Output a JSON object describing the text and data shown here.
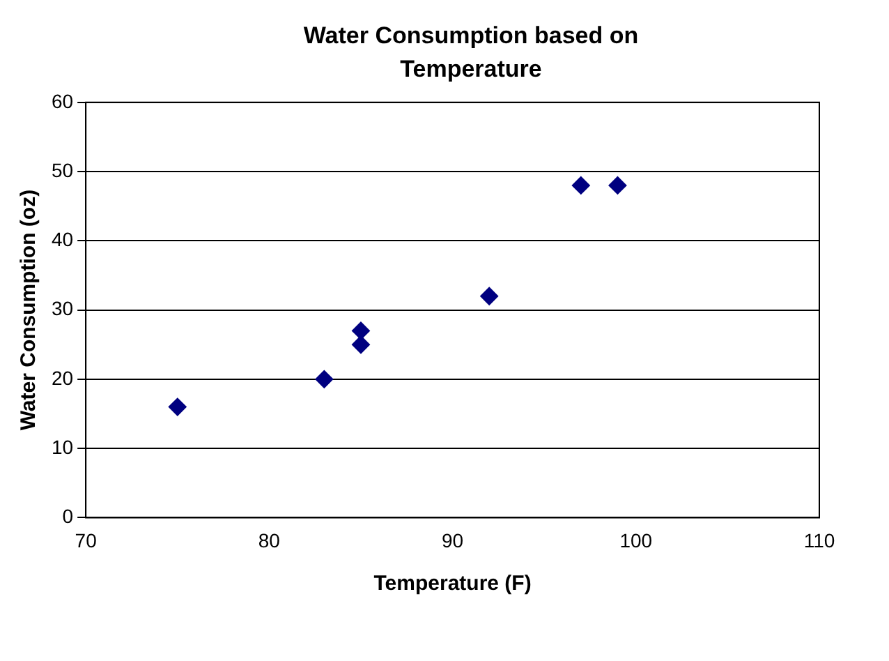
{
  "chart_data": {
    "type": "scatter",
    "title": "Water Consumption based on Temperature",
    "xlabel": "Temperature (F)",
    "ylabel": "Water Consumption (oz)",
    "x": [
      75,
      83,
      85,
      85,
      92,
      97,
      99
    ],
    "series": [
      {
        "color": "#000080",
        "values": [
          16,
          20,
          27,
          25,
          32,
          48,
          48
        ]
      }
    ],
    "xlim": [
      70,
      110
    ],
    "xticks": [
      70,
      80,
      90,
      100,
      110
    ],
    "ylim": [
      0,
      60
    ],
    "yticks": [
      0,
      10,
      20,
      30,
      40,
      50,
      60
    ],
    "grid": "y",
    "legend": false,
    "marker": "diamond"
  }
}
